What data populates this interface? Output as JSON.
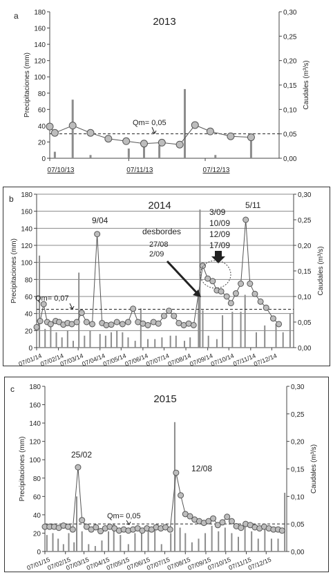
{
  "chart_data": [
    {
      "panel_letter": "a",
      "type": "line",
      "title": "2013",
      "ylabel": "Precipitaciones (mm)",
      "y2label": "Caudales (m³/s)",
      "ylim": [
        0,
        180
      ],
      "y2lim": [
        0,
        0.3
      ],
      "yticks": [
        "0",
        "20",
        "40",
        "60",
        "80",
        "100",
        "120",
        "140",
        "160",
        "180"
      ],
      "y2ticks": [
        "0,00",
        "0,05",
        "0,10",
        "0,15",
        "0,20",
        "0,25",
        "0,30"
      ],
      "xlim": [
        0,
        90
      ],
      "xticks": [
        {
          "x": 0,
          "label": "07/10/13"
        },
        {
          "x": 31,
          "label": "07/11/13"
        },
        {
          "x": 61,
          "label": "07/12/13"
        }
      ],
      "grid": false,
      "mean_label": "Qm= 0,05",
      "mean_value": 0.05,
      "precip_bars": [
        {
          "x": 2,
          "v": 8
        },
        {
          "x": 9,
          "v": 72
        },
        {
          "x": 16,
          "v": 4
        },
        {
          "x": 31,
          "v": 12
        },
        {
          "x": 37,
          "v": 15
        },
        {
          "x": 43,
          "v": 16
        },
        {
          "x": 53,
          "v": 85
        },
        {
          "x": 65,
          "v": 4
        },
        {
          "x": 79,
          "v": 28
        }
      ],
      "flow": [
        {
          "x": 0,
          "v": 0.065
        },
        {
          "x": 2,
          "v": 0.052
        },
        {
          "x": 9,
          "v": 0.067
        },
        {
          "x": 16,
          "v": 0.052
        },
        {
          "x": 23,
          "v": 0.04
        },
        {
          "x": 30,
          "v": 0.035
        },
        {
          "x": 37,
          "v": 0.03
        },
        {
          "x": 44,
          "v": 0.032
        },
        {
          "x": 51,
          "v": 0.028
        },
        {
          "x": 57,
          "v": 0.068
        },
        {
          "x": 63,
          "v": 0.055
        },
        {
          "x": 71,
          "v": 0.045
        },
        {
          "x": 79,
          "v": 0.043
        }
      ],
      "annotations": []
    },
    {
      "panel_letter": "b",
      "type": "line",
      "title": "2014",
      "ylabel": "Precipitaciones (mm)",
      "y2label": "Caudales (m³/s)",
      "ylim": [
        0,
        180
      ],
      "y2lim": [
        0,
        0.3
      ],
      "yticks": [
        "0",
        "20",
        "40",
        "60",
        "80",
        "100",
        "120",
        "140",
        "160",
        "180"
      ],
      "y2ticks": [
        "0,00",
        "0,05",
        "0,10",
        "0,15",
        "0,20",
        "0,25",
        "0,30"
      ],
      "xlim": [
        0,
        365
      ],
      "xticks": [
        {
          "x": 0,
          "label": "07/01/14"
        },
        {
          "x": 31,
          "label": "07/02/14"
        },
        {
          "x": 59,
          "label": "07/03/14"
        },
        {
          "x": 90,
          "label": "07/04/14"
        },
        {
          "x": 120,
          "label": "07/05/14"
        },
        {
          "x": 151,
          "label": "07/06/14"
        },
        {
          "x": 181,
          "label": "07/07/14"
        },
        {
          "x": 212,
          "label": "07/08/14"
        },
        {
          "x": 243,
          "label": "07/09/14"
        },
        {
          "x": 273,
          "label": "07/10/14"
        },
        {
          "x": 304,
          "label": "07/11/14"
        },
        {
          "x": 334,
          "label": "07/12/14"
        }
      ],
      "grid": true,
      "mean_label": "Qm= 0,07",
      "mean_value": 0.075,
      "precip_bars": [
        {
          "x": 4,
          "v": 108
        },
        {
          "x": 12,
          "v": 22
        },
        {
          "x": 20,
          "v": 25
        },
        {
          "x": 28,
          "v": 18
        },
        {
          "x": 36,
          "v": 12
        },
        {
          "x": 44,
          "v": 20
        },
        {
          "x": 52,
          "v": 8
        },
        {
          "x": 60,
          "v": 88
        },
        {
          "x": 68,
          "v": 14
        },
        {
          "x": 76,
          "v": 20
        },
        {
          "x": 90,
          "v": 16
        },
        {
          "x": 98,
          "v": 14
        },
        {
          "x": 106,
          "v": 18
        },
        {
          "x": 114,
          "v": 20
        },
        {
          "x": 122,
          "v": 18
        },
        {
          "x": 130,
          "v": 12
        },
        {
          "x": 140,
          "v": 8
        },
        {
          "x": 148,
          "v": 46
        },
        {
          "x": 158,
          "v": 10
        },
        {
          "x": 168,
          "v": 10
        },
        {
          "x": 178,
          "v": 12
        },
        {
          "x": 190,
          "v": 14
        },
        {
          "x": 198,
          "v": 14
        },
        {
          "x": 210,
          "v": 8
        },
        {
          "x": 218,
          "v": 12
        },
        {
          "x": 230,
          "v": 60
        },
        {
          "x": 232,
          "v": 162
        },
        {
          "x": 236,
          "v": 44
        },
        {
          "x": 244,
          "v": 14
        },
        {
          "x": 256,
          "v": 10
        },
        {
          "x": 264,
          "v": 38
        },
        {
          "x": 278,
          "v": 42
        },
        {
          "x": 290,
          "v": 42
        },
        {
          "x": 296,
          "v": 62
        },
        {
          "x": 312,
          "v": 18
        },
        {
          "x": 324,
          "v": 26
        },
        {
          "x": 340,
          "v": 28
        },
        {
          "x": 350,
          "v": 18
        },
        {
          "x": 360,
          "v": 40
        }
      ],
      "flow": [
        {
          "x": 0,
          "v": 0.04
        },
        {
          "x": 5,
          "v": 0.052
        },
        {
          "x": 10,
          "v": 0.085
        },
        {
          "x": 15,
          "v": 0.05
        },
        {
          "x": 20,
          "v": 0.046
        },
        {
          "x": 27,
          "v": 0.052
        },
        {
          "x": 32,
          "v": 0.05
        },
        {
          "x": 38,
          "v": 0.045
        },
        {
          "x": 44,
          "v": 0.048
        },
        {
          "x": 50,
          "v": 0.046
        },
        {
          "x": 57,
          "v": 0.05
        },
        {
          "x": 64,
          "v": 0.068
        },
        {
          "x": 71,
          "v": 0.05
        },
        {
          "x": 79,
          "v": 0.046
        },
        {
          "x": 86,
          "v": 0.222
        },
        {
          "x": 93,
          "v": 0.048
        },
        {
          "x": 99,
          "v": 0.044
        },
        {
          "x": 106,
          "v": 0.045
        },
        {
          "x": 114,
          "v": 0.05
        },
        {
          "x": 122,
          "v": 0.046
        },
        {
          "x": 130,
          "v": 0.05
        },
        {
          "x": 137,
          "v": 0.076
        },
        {
          "x": 144,
          "v": 0.05
        },
        {
          "x": 151,
          "v": 0.047
        },
        {
          "x": 158,
          "v": 0.044
        },
        {
          "x": 166,
          "v": 0.05
        },
        {
          "x": 173,
          "v": 0.047
        },
        {
          "x": 181,
          "v": 0.062
        },
        {
          "x": 188,
          "v": 0.072
        },
        {
          "x": 195,
          "v": 0.062
        },
        {
          "x": 202,
          "v": 0.048
        },
        {
          "x": 209,
          "v": 0.044
        },
        {
          "x": 216,
          "v": 0.047
        },
        {
          "x": 223,
          "v": 0.044
        },
        {
          "x": 236,
          "v": 0.16
        },
        {
          "x": 243,
          "v": 0.135
        },
        {
          "x": 250,
          "v": 0.13
        },
        {
          "x": 256,
          "v": 0.112
        },
        {
          "x": 262,
          "v": 0.11
        },
        {
          "x": 270,
          "v": 0.1
        },
        {
          "x": 276,
          "v": 0.087
        },
        {
          "x": 283,
          "v": 0.106
        },
        {
          "x": 290,
          "v": 0.125
        },
        {
          "x": 297,
          "v": 0.25
        },
        {
          "x": 303,
          "v": 0.125
        },
        {
          "x": 310,
          "v": 0.105
        },
        {
          "x": 318,
          "v": 0.09
        },
        {
          "x": 326,
          "v": 0.078
        },
        {
          "x": 336,
          "v": 0.057
        },
        {
          "x": 344,
          "v": 0.046
        }
      ],
      "annotations": [
        "9/04",
        "desbordes",
        "27/08",
        "2/09",
        "3/09",
        "10/09",
        "12/09",
        "17/09",
        "5/11"
      ]
    },
    {
      "panel_letter": "c",
      "type": "line",
      "title": "2015",
      "ylabel": "Precipitaciones (mm)",
      "y2label": "Caudales (m³/s)",
      "ylim": [
        0,
        180
      ],
      "y2lim": [
        0,
        0.3
      ],
      "yticks": [
        "0",
        "20",
        "40",
        "60",
        "80",
        "100",
        "120",
        "140",
        "160",
        "180"
      ],
      "y2ticks": [
        "0,00",
        "0,05",
        "0,10",
        "0,15",
        "0,20",
        "0,25",
        "0,30"
      ],
      "xlim": [
        0,
        365
      ],
      "xticks": [
        {
          "x": 0,
          "label": "07/01/15"
        },
        {
          "x": 31,
          "label": "07/02/15"
        },
        {
          "x": 59,
          "label": "07/03/15"
        },
        {
          "x": 90,
          "label": "07/04/15"
        },
        {
          "x": 120,
          "label": "07/05/15"
        },
        {
          "x": 151,
          "label": "07/06/15"
        },
        {
          "x": 181,
          "label": "07/07/15"
        },
        {
          "x": 212,
          "label": "07/08/15"
        },
        {
          "x": 243,
          "label": "07/09/15"
        },
        {
          "x": 273,
          "label": "07/10/15"
        },
        {
          "x": 304,
          "label": "07/11/15"
        },
        {
          "x": 334,
          "label": "07/12/15"
        }
      ],
      "grid": false,
      "mean_label": "Qm= 0,05",
      "mean_value": 0.05,
      "precip_bars": [
        {
          "x": 3,
          "v": 18
        },
        {
          "x": 12,
          "v": 20
        },
        {
          "x": 20,
          "v": 14
        },
        {
          "x": 28,
          "v": 8
        },
        {
          "x": 36,
          "v": 20
        },
        {
          "x": 44,
          "v": 10
        },
        {
          "x": 48,
          "v": 60
        },
        {
          "x": 56,
          "v": 22
        },
        {
          "x": 66,
          "v": 8
        },
        {
          "x": 76,
          "v": 6
        },
        {
          "x": 86,
          "v": 12
        },
        {
          "x": 96,
          "v": 22
        },
        {
          "x": 104,
          "v": 30
        },
        {
          "x": 114,
          "v": 18
        },
        {
          "x": 126,
          "v": 8
        },
        {
          "x": 136,
          "v": 20
        },
        {
          "x": 146,
          "v": 20
        },
        {
          "x": 156,
          "v": 28
        },
        {
          "x": 166,
          "v": 24
        },
        {
          "x": 176,
          "v": 8
        },
        {
          "x": 190,
          "v": 20
        },
        {
          "x": 196,
          "v": 141
        },
        {
          "x": 204,
          "v": 26
        },
        {
          "x": 212,
          "v": 20
        },
        {
          "x": 222,
          "v": 10
        },
        {
          "x": 232,
          "v": 14
        },
        {
          "x": 242,
          "v": 20
        },
        {
          "x": 252,
          "v": 28
        },
        {
          "x": 262,
          "v": 22
        },
        {
          "x": 272,
          "v": 26
        },
        {
          "x": 282,
          "v": 20
        },
        {
          "x": 292,
          "v": 16
        },
        {
          "x": 302,
          "v": 30
        },
        {
          "x": 312,
          "v": 22
        },
        {
          "x": 322,
          "v": 14
        },
        {
          "x": 332,
          "v": 26
        },
        {
          "x": 342,
          "v": 14
        },
        {
          "x": 352,
          "v": 14
        },
        {
          "x": 362,
          "v": 64
        }
      ],
      "flow": [
        {
          "x": 0,
          "v": 0.045
        },
        {
          "x": 7,
          "v": 0.045
        },
        {
          "x": 14,
          "v": 0.045
        },
        {
          "x": 21,
          "v": 0.043
        },
        {
          "x": 28,
          "v": 0.047
        },
        {
          "x": 35,
          "v": 0.045
        },
        {
          "x": 42,
          "v": 0.04
        },
        {
          "x": 50,
          "v": 0.153
        },
        {
          "x": 56,
          "v": 0.057
        },
        {
          "x": 63,
          "v": 0.045
        },
        {
          "x": 70,
          "v": 0.04
        },
        {
          "x": 77,
          "v": 0.044
        },
        {
          "x": 84,
          "v": 0.037
        },
        {
          "x": 91,
          "v": 0.042
        },
        {
          "x": 98,
          "v": 0.045
        },
        {
          "x": 105,
          "v": 0.042
        },
        {
          "x": 112,
          "v": 0.038
        },
        {
          "x": 119,
          "v": 0.04
        },
        {
          "x": 126,
          "v": 0.038
        },
        {
          "x": 133,
          "v": 0.04
        },
        {
          "x": 140,
          "v": 0.042
        },
        {
          "x": 147,
          "v": 0.038
        },
        {
          "x": 154,
          "v": 0.042
        },
        {
          "x": 161,
          "v": 0.04
        },
        {
          "x": 168,
          "v": 0.044
        },
        {
          "x": 175,
          "v": 0.042
        },
        {
          "x": 182,
          "v": 0.044
        },
        {
          "x": 189,
          "v": 0.04
        },
        {
          "x": 198,
          "v": 0.143
        },
        {
          "x": 205,
          "v": 0.102
        },
        {
          "x": 212,
          "v": 0.068
        },
        {
          "x": 219,
          "v": 0.064
        },
        {
          "x": 226,
          "v": 0.058
        },
        {
          "x": 233,
          "v": 0.055
        },
        {
          "x": 240,
          "v": 0.052
        },
        {
          "x": 247,
          "v": 0.055
        },
        {
          "x": 254,
          "v": 0.06
        },
        {
          "x": 261,
          "v": 0.048
        },
        {
          "x": 268,
          "v": 0.053
        },
        {
          "x": 275,
          "v": 0.063
        },
        {
          "x": 282,
          "v": 0.055
        },
        {
          "x": 289,
          "v": 0.046
        },
        {
          "x": 296,
          "v": 0.043
        },
        {
          "x": 303,
          "v": 0.05
        },
        {
          "x": 310,
          "v": 0.048
        },
        {
          "x": 317,
          "v": 0.044
        },
        {
          "x": 324,
          "v": 0.042
        },
        {
          "x": 331,
          "v": 0.045
        },
        {
          "x": 338,
          "v": 0.042
        },
        {
          "x": 345,
          "v": 0.04
        },
        {
          "x": 352,
          "v": 0.04
        },
        {
          "x": 358,
          "v": 0.038
        }
      ],
      "annotations": [
        "25/02",
        "12/08"
      ]
    }
  ]
}
